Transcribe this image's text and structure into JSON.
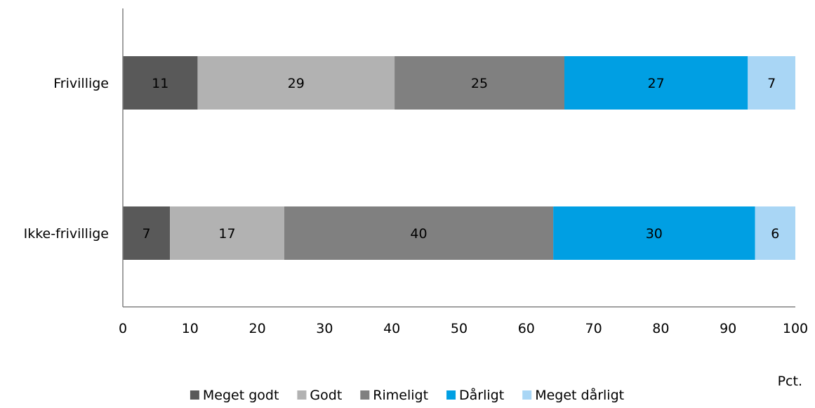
{
  "chart_data": {
    "type": "bar",
    "orientation": "horizontal",
    "stacked": true,
    "categories": [
      "Frivillige",
      "Ikke-frivillige"
    ],
    "series": [
      {
        "name": "Meget godt",
        "color": "#595959",
        "values": [
          11,
          7
        ]
      },
      {
        "name": "Godt",
        "color": "#b2b2b2",
        "values": [
          29,
          17
        ]
      },
      {
        "name": "Rimeligt",
        "color": "#808080",
        "values": [
          25,
          40
        ]
      },
      {
        "name": "Dårligt",
        "color": "#009fe3",
        "values": [
          27,
          30
        ]
      },
      {
        "name": "Meget dårligt",
        "color": "#a9d6f5",
        "values": [
          7,
          6
        ]
      }
    ],
    "value_labels": [
      [
        "11",
        "29",
        "25",
        "27",
        "7"
      ],
      [
        "7",
        "17",
        "40",
        "30",
        "6"
      ]
    ],
    "xlim": [
      0,
      100
    ],
    "xticks": [
      0,
      10,
      20,
      30,
      40,
      50,
      60,
      70,
      80,
      90,
      100
    ],
    "xlabel": "Pct.",
    "legend_position": "bottom",
    "grid": false
  }
}
